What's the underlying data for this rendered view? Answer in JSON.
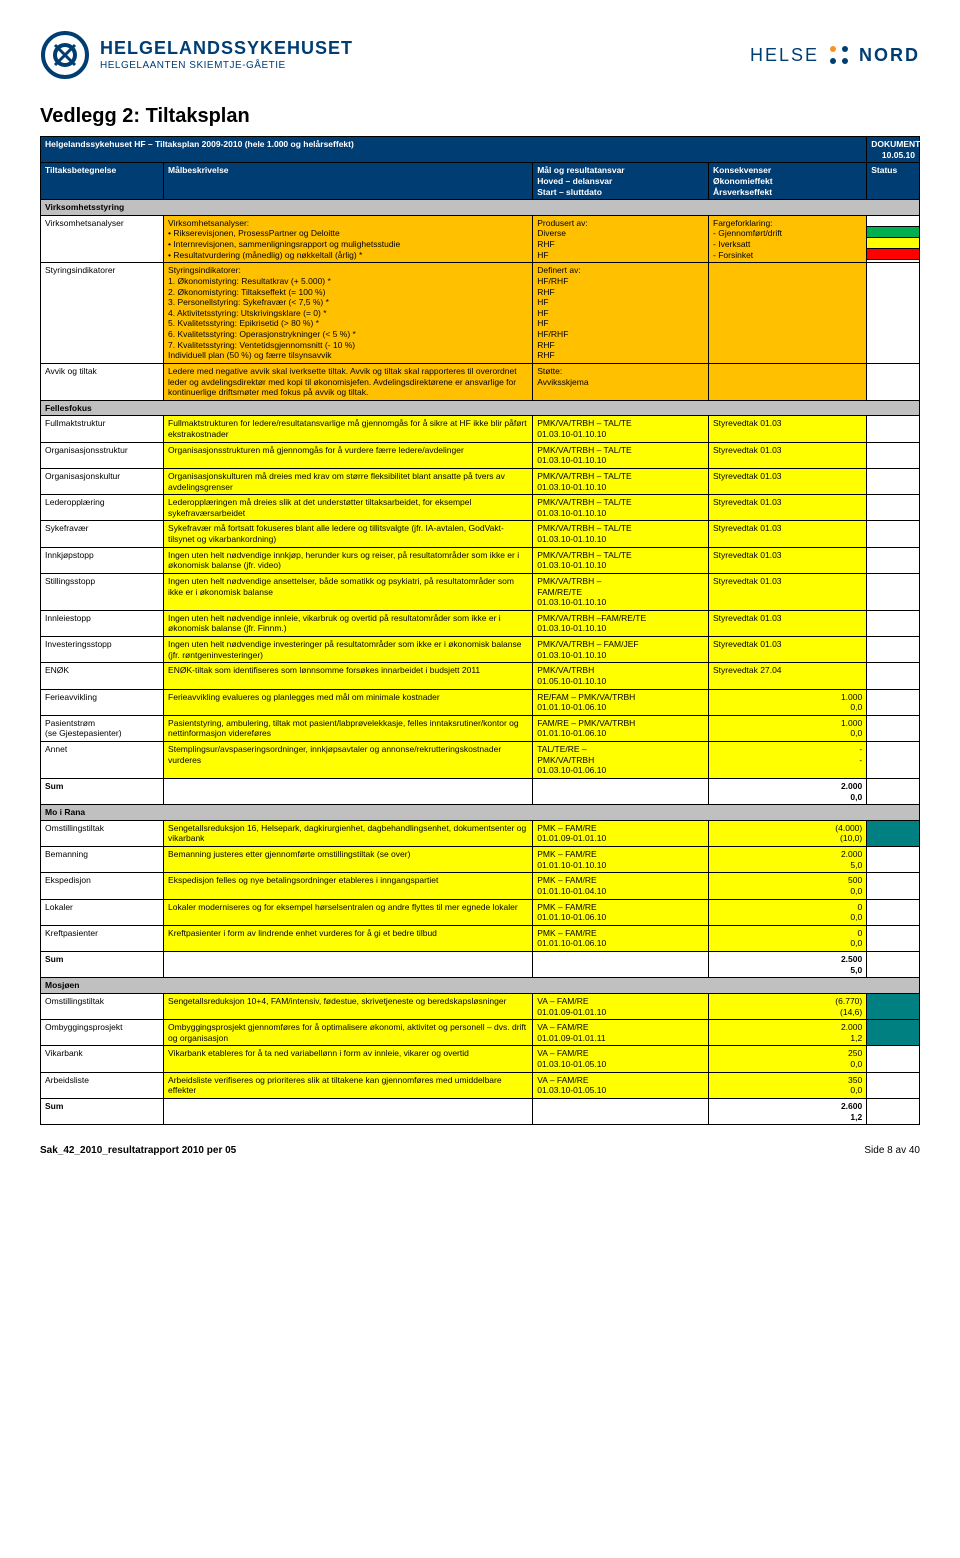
{
  "header": {
    "org_main": "HELGELANDSSYKEHUSET",
    "org_sub": "HELGELAANTEN SKIEMTJE-GÅETIE",
    "brand": "HELSE",
    "brand_bold": "NORD"
  },
  "page_title": "Vedlegg 2: Tiltaksplan",
  "title_bar": {
    "left": "Helgelandssykehuset HF – Tiltaksplan 2009-2010 (hele 1.000 og helårseffekt)",
    "right": "DOKUMENTDATO 10.05.10"
  },
  "columns": {
    "c1": "Tiltaksbetegnelse",
    "c2": "Målbeskrivelse",
    "c3": "Mål og resultatansvar\nHoved – delansvar\nStart – sluttdato",
    "c4": "Konsekvenser\nØkonomieffekt\nÅrsverkseffekt",
    "c5": "Status"
  },
  "colors": {
    "navy": "#003d73",
    "gray": "#c0c0c0",
    "orange": "#ffc000",
    "yellow": "#ffff00",
    "green": "#00b050",
    "red": "#ff0000",
    "dark_teal": "#008080",
    "white": "#ffffff"
  },
  "sections": [
    {
      "name": "Virksomhetsstyring",
      "rows": [
        {
          "c1": "Virksomhetsanalyser",
          "c2": "Virksomhetsanalyser:\n• Rikserevisjonen, ProsessPartner og Deloitte\n• Internrevisjonen, sammenligningsrapport og mulighetsstudie\n• Resultatvurdering (månedlig) og nøkkeltall (årlig) *",
          "c3": "Produsert av:\nDiverse\nRHF\nHF",
          "c4": "Fargeforklaring:\n- Gjennomført/drift\n- Iverksatt\n- Forsinket",
          "bg": "#ffc000",
          "status_cells": [
            {
              "bg": "#ffffff"
            },
            {
              "bg": "#00b050"
            },
            {
              "bg": "#ffff00"
            },
            {
              "bg": "#ff0000"
            }
          ]
        },
        {
          "c1": "Styringsindikatorer",
          "c2": "Styringsindikatorer:\n1. Økonomistyring: Resultatkrav (+ 5.000) *\n2. Økonomistyring: Tiltakseffekt (= 100 %)\n3. Personellstyring: Sykefravær (< 7,5 %) *\n4. Aktivitetsstyring: Utskrivingsklare (= 0) *\n5. Kvalitetsstyring: Epikrisetid (> 80 %) *\n6. Kvalitetsstyring: Operasjonstrykninger (< 5 %) *\n7. Kvalitetsstyring: Ventetidsgjennomsnitt (- 10 %)\nIndividuell plan (50 %) og færre tilsynsavvik",
          "c3": "Definert av:\nHF/RHF\nRHF\nHF\nHF\nHF\nHF/RHF\nRHF\nRHF",
          "c4": "",
          "bg": "#ffc000"
        },
        {
          "c1": "Avvik og tiltak",
          "c2": "Ledere med negative avvik skal iverksette tiltak. Avvik og tiltak skal rapporteres til overordnet leder og avdelingsdirektør med kopi til økonomisjefen. Avdelingsdirektørene er ansvarlige for kontinuerlige driftsmøter med fokus på avvik og tiltak.",
          "c3": "Støtte:\nAvviksskjema",
          "c4": "",
          "bg": "#ffc000"
        }
      ]
    },
    {
      "name": "Fellesfokus",
      "rows": [
        {
          "c1": "Fullmaktstruktur",
          "c2": "Fullmaktstrukturen for ledere/resultatansvarlige må gjennomgås for å sikre at HF ikke blir påført ekstrakostnader",
          "c3": "PMK/VA/TRBH – TAL/TE\n01.03.10-01.10.10",
          "c4": "Styrevedtak 01.03",
          "c4_align": "left",
          "bg": "#ffff00"
        },
        {
          "c1": "Organisasjonsstruktur",
          "c2": "Organisasjonsstrukturen må gjennomgås for å vurdere færre ledere/avdelinger",
          "c3": "PMK/VA/TRBH – TAL/TE\n01.03.10-01.10.10",
          "c4": "Styrevedtak 01.03",
          "c4_align": "left",
          "bg": "#ffff00"
        },
        {
          "c1": "Organisasjonskultur",
          "c2": "Organisasjonskulturen må dreies med krav om større fleksibilitet blant ansatte på tvers av avdelingsgrenser",
          "c3": "PMK/VA/TRBH – TAL/TE\n01.03.10-01.10.10",
          "c4": "Styrevedtak 01.03",
          "c4_align": "left",
          "bg": "#ffff00"
        },
        {
          "c1": "Lederopplæring",
          "c2": "Lederopplæringen må dreies slik at det understøtter tiltaksarbeidet, for eksempel sykefraværsarbeidet",
          "c3": "PMK/VA/TRBH – TAL/TE\n01.03.10-01.10.10",
          "c4": "Styrevedtak 01.03",
          "c4_align": "left",
          "bg": "#ffff00"
        },
        {
          "c1": "Sykefravær",
          "c2": "Sykefravær må fortsatt fokuseres blant alle ledere og tillitsvalgte (jfr. IA-avtalen, GodVakt-tilsynet og vikarbankordning)",
          "c3": "PMK/VA/TRBH – TAL/TE\n01.03.10-01.10.10",
          "c4": "Styrevedtak 01.03",
          "c4_align": "left",
          "bg": "#ffff00"
        },
        {
          "c1": "Innkjøpstopp",
          "c2": "Ingen uten helt nødvendige innkjøp, herunder kurs og reiser, på resultatområder som ikke er i økonomisk balanse (jfr. video)",
          "c3": "PMK/VA/TRBH – TAL/TE\n01.03.10-01.10.10",
          "c4": "Styrevedtak 01.03",
          "c4_align": "left",
          "bg": "#ffff00"
        },
        {
          "c1": "Stillingsstopp",
          "c2": "Ingen uten helt nødvendige ansettelser, både somatikk og psykiatri, på resultatområder som ikke er i økonomisk balanse",
          "c3": "PMK/VA/TRBH –\nFAM/RE/TE\n01.03.10-01.10.10",
          "c4": "Styrevedtak 01.03",
          "c4_align": "left",
          "bg": "#ffff00"
        },
        {
          "c1": "Innleiestopp",
          "c2": "Ingen uten helt nødvendige innleie, vikarbruk og overtid på resultatområder som ikke er i økonomisk balanse (jfr. Finnm.)",
          "c3": "PMK/VA/TRBH –FAM/RE/TE\n01.03.10-01.10.10",
          "c4": "Styrevedtak 01.03",
          "c4_align": "left",
          "bg": "#ffff00"
        },
        {
          "c1": "Investeringsstopp",
          "c2": "Ingen uten helt nødvendige investeringer på resultatområder som ikke er i økonomisk balanse (jfr. røntgeninvesteringer)",
          "c3": "PMK/VA/TRBH – FAM/JEF\n01.03.10-01.10.10",
          "c4": "Styrevedtak 01.03",
          "c4_align": "left",
          "bg": "#ffff00"
        },
        {
          "c1": "ENØK",
          "c2": "ENØK-tiltak som identifiseres som lønnsomme forsøkes innarbeidet i budsjett 2011",
          "c3": "PMK/VA/TRBH\n01.05.10-01.10.10",
          "c4": "Styrevedtak 27.04",
          "c4_align": "left",
          "bg": "#ffff00"
        },
        {
          "c1": "Ferieavvikling",
          "c2": "Ferieavvikling evalueres og planlegges med mål om minimale kostnader",
          "c3": "RE/FAM – PMK/VA/TRBH\n01.01.10-01.06.10",
          "c4": "1.000\n0,0",
          "c4_align": "right",
          "bg": "#ffff00"
        },
        {
          "c1": "Pasientstrøm\n(se Gjestepasienter)",
          "c2": "Pasientstyring, ambulering, tiltak mot pasient/labprøvelekkasje, felles inntaksrutiner/kontor og nettinformasjon videreføres",
          "c3": "FAM/RE – PMK/VA/TRBH\n01.01.10-01.06.10",
          "c4": "1.000\n0,0",
          "c4_align": "right",
          "bg": "#ffff00"
        },
        {
          "c1": "Annet",
          "c2": "Stemplingsur/avspaseringsordninger, innkjøpsavtaler og annonse/rekrutteringskostnader vurderes",
          "c3": "TAL/TE/RE –\nPMK/VA/TRBH\n01.03.10-01.06.10",
          "c4": "-\n-",
          "c4_align": "right",
          "bg": "#ffff00"
        },
        {
          "c1": "Sum",
          "c2": "",
          "c3": "",
          "c4": "2.000\n0,0",
          "c4_align": "right",
          "bg": "#ffffff",
          "bold_c1": true,
          "bold_c4": true
        }
      ]
    },
    {
      "name": "Mo i Rana",
      "rows": [
        {
          "c1": "Omstillingstiltak",
          "c2": "Sengetallsreduksjon 16, Helsepark, dagkirurgienhet, dagbehandlingsenhet, dokumentsenter og vikarbank",
          "c3": "PMK – FAM/RE\n01.01.09-01.01.10",
          "c4": "(4.000)\n(10,0)",
          "c4_align": "right",
          "bg": "#ffff00",
          "status_bg": "#008080"
        },
        {
          "c1": "Bemanning",
          "c2": "Bemanning justeres etter gjennomførte omstillingstiltak (se over)",
          "c3": "PMK – FAM/RE\n01.01.10-01.10.10",
          "c4": "2.000\n5,0",
          "c4_align": "right",
          "bg": "#ffff00"
        },
        {
          "c1": "Ekspedisjon",
          "c2": "Ekspedisjon felles og nye betalingsordninger etableres i inngangspartiet",
          "c3": "PMK – FAM/RE\n01.01.10-01.04.10",
          "c4": "500\n0,0",
          "c4_align": "right",
          "bg": "#ffff00"
        },
        {
          "c1": "Lokaler",
          "c2": "Lokaler moderniseres og for eksempel hørselsentralen og andre flyttes til mer egnede lokaler",
          "c3": "PMK – FAM/RE\n01.01.10-01.06.10",
          "c4": "0\n0,0",
          "c4_align": "right",
          "bg": "#ffff00"
        },
        {
          "c1": "Kreftpasienter",
          "c2": "Kreftpasienter i form av lindrende enhet vurderes for å gi et bedre tilbud",
          "c3": "PMK – FAM/RE\n01.01.10-01.06.10",
          "c4": "0\n0,0",
          "c4_align": "right",
          "bg": "#ffff00"
        },
        {
          "c1": "Sum",
          "c2": "",
          "c3": "",
          "c4": "2.500\n5,0",
          "c4_align": "right",
          "bg": "#ffffff",
          "bold_c1": true,
          "bold_c4": true
        }
      ]
    },
    {
      "name": "Mosjøen",
      "rows": [
        {
          "c1": "Omstillingstiltak",
          "c2": "Sengetallsreduksjon 10+4, FAM/intensiv, fødestue, skrivetjeneste og beredskapsløsninger",
          "c3": "VA – FAM/RE\n01.01.09-01.01.10",
          "c4": "(6.770)\n(14,6)",
          "c4_align": "right",
          "bg": "#ffff00",
          "status_bg": "#008080"
        },
        {
          "c1": "Ombyggingsprosjekt",
          "c2": "Ombyggingsprosjekt gjennomføres for å optimalisere økonomi, aktivitet og personell – dvs. drift og organisasjon",
          "c3": "VA – FAM/RE\n01.01.09-01.01.11",
          "c4": "2.000\n1,2",
          "c4_align": "right",
          "bg": "#ffff00",
          "status_bg": "#008080"
        },
        {
          "c1": "Vikarbank",
          "c2": "Vikarbank etableres for å ta ned variabellønn i form av innleie, vikarer og overtid",
          "c3": "VA – FAM/RE\n01.03.10-01.05.10",
          "c4": "250\n0,0",
          "c4_align": "right",
          "bg": "#ffff00"
        },
        {
          "c1": "Arbeidsliste",
          "c2": "Arbeidsliste verifiseres og prioriteres slik at tiltakene kan gjennomføres med umiddelbare effekter",
          "c3": "VA – FAM/RE\n01.03.10-01.05.10",
          "c4": "350\n0,0",
          "c4_align": "right",
          "bg": "#ffff00"
        },
        {
          "c1": "Sum",
          "c2": "",
          "c3": "",
          "c4": "2.600\n1,2",
          "c4_align": "right",
          "bg": "#ffffff",
          "bold_c1": true,
          "bold_c4": true
        }
      ]
    }
  ],
  "footer": {
    "left": "Sak_42_2010_resultatrapport 2010 per 05",
    "right": "Side 8 av 40"
  }
}
